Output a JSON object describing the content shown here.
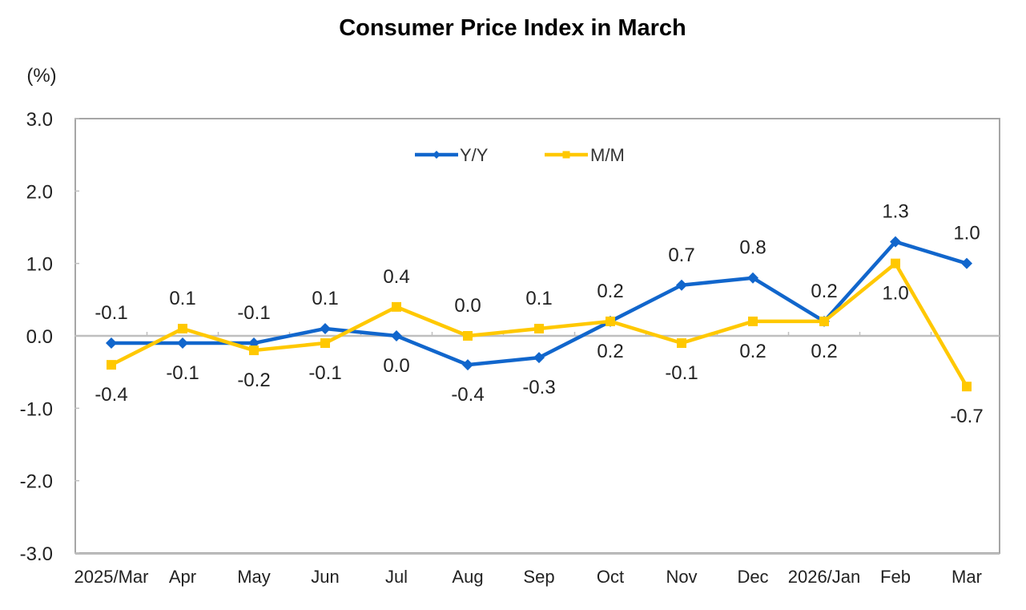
{
  "chart_data": {
    "type": "line",
    "title": "Consumer Price Index in March",
    "ylabel": "(%)",
    "xlabel": "",
    "ylim": [
      -3.0,
      3.0
    ],
    "yticks": [
      "3.0",
      "2.0",
      "1.0",
      "0.0",
      "-1.0",
      "-2.0",
      "-3.0"
    ],
    "ytick_values": [
      3.0,
      2.0,
      1.0,
      0.0,
      -1.0,
      -2.0,
      -3.0
    ],
    "grid": false,
    "legend_position": "top-center",
    "categories": [
      "2025/Mar",
      "Apr",
      "May",
      "Jun",
      "Jul",
      "Aug",
      "Sep",
      "Oct",
      "Nov",
      "Dec",
      "2026/Jan",
      "Feb",
      "Mar"
    ],
    "series": [
      {
        "name": "Y/Y",
        "color": "#1166cc",
        "marker": "diamond",
        "values": [
          -0.1,
          -0.1,
          -0.1,
          0.1,
          0.0,
          -0.4,
          -0.3,
          0.2,
          0.7,
          0.8,
          0.2,
          1.3,
          1.0
        ],
        "labels": [
          "-0.1",
          "-0.1",
          "-0.1",
          "0.1",
          "0.0",
          "-0.4",
          "-0.3",
          "0.2",
          "0.7",
          "0.8",
          "0.2",
          "1.3",
          "1.0"
        ],
        "label_positions": [
          "above",
          "below",
          "above",
          "above",
          "below",
          "below",
          "below",
          "below",
          "above",
          "above",
          "above",
          "above",
          "above"
        ]
      },
      {
        "name": "M/M",
        "color": "#ffc800",
        "marker": "square",
        "values": [
          -0.4,
          0.1,
          -0.2,
          -0.1,
          0.4,
          0.0,
          0.1,
          0.2,
          -0.1,
          0.2,
          0.2,
          1.0,
          -0.7
        ],
        "labels": [
          "-0.4",
          "0.1",
          "-0.2",
          "-0.1",
          "0.4",
          "0.0",
          "0.1",
          "0.2",
          "-0.1",
          "0.2",
          "0.2",
          "1.0",
          "-0.7"
        ],
        "label_positions": [
          "below",
          "above",
          "below",
          "below",
          "above",
          "above",
          "above",
          "above",
          "below",
          "below",
          "below",
          "below",
          "below"
        ]
      }
    ]
  }
}
